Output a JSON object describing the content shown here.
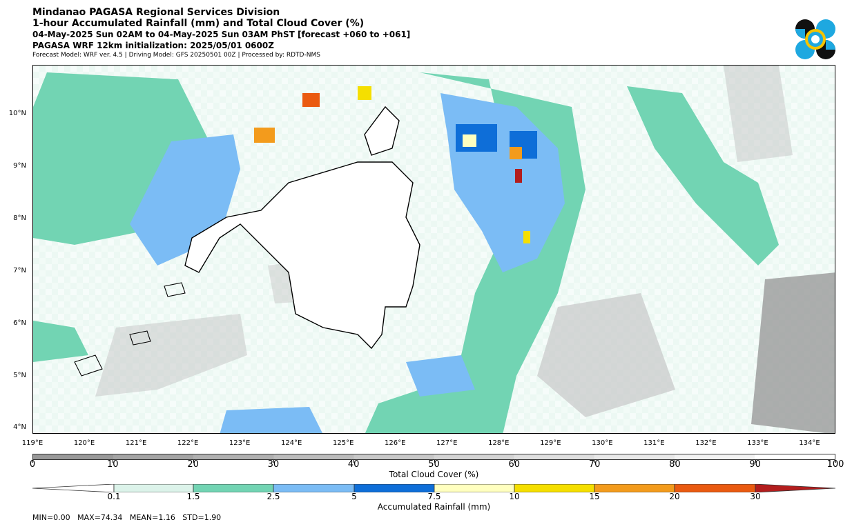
{
  "header": {
    "title": "Mindanao PAGASA Regional Services Division",
    "subtitle": "1-hour Accumulated Rainfall (mm) and Total Cloud Cover (%)",
    "valid_time": "04-May-2025 Sun 02AM to 04-May-2025 Sun 03AM PhST [forecast +060 to +061]",
    "model_init": "PAGASA WRF 12km initialization: 2025/05/01 0600Z",
    "credits": "Forecast Model: WRF ver. 4.5 | Driving Model: GFS 20250501 00Z | Processed by: RDTD-NMS"
  },
  "logo": {
    "icon": "pagasa-logo-icon",
    "colors": [
      "#111111",
      "#1ea8e0",
      "#f5c400",
      "#ffffff"
    ]
  },
  "map": {
    "lat_labels": [
      "10°N",
      "9°N",
      "8°N",
      "7°N",
      "6°N",
      "5°N",
      "4°N"
    ],
    "lon_labels": [
      "119°E",
      "120°E",
      "121°E",
      "122°E",
      "123°E",
      "124°E",
      "125°E",
      "126°E",
      "127°E",
      "128°E",
      "129°E",
      "130°E",
      "131°E",
      "132°E",
      "133°E",
      "134°E"
    ],
    "extent": {
      "lon_min": 119,
      "lon_max": 134.5,
      "lat_min": 3.9,
      "lat_max": 10.95
    }
  },
  "cloud_colorbar": {
    "title": "Total Cloud Cover (%)",
    "ticks": [
      "0",
      "10",
      "20",
      "30",
      "40",
      "50",
      "60",
      "70",
      "80",
      "90",
      "100"
    ],
    "colors": [
      "#999999",
      "#a4a4a4",
      "#b0b0b0",
      "#bcbcbc",
      "#c8c8c8",
      "#d4d4d4",
      "#dfdfdf",
      "#e9e9e9",
      "#f3f3f3",
      "#ffffff"
    ]
  },
  "rain_colorbar": {
    "title": "Accumulated Rainfall (mm)",
    "tick_labels": [
      "0.1",
      "1.5",
      "2.5",
      "5",
      "7.5",
      "10",
      "15",
      "20",
      "30"
    ],
    "colors": [
      "#dcf3ea",
      "#72d4b3",
      "#7bbcf5",
      "#0e6ed8",
      "#ffffbf",
      "#f5df00",
      "#f39b1c",
      "#ea5a10",
      "#b31d1d"
    ]
  },
  "stats": {
    "text": "MIN=0.00   MAX=74.34   MEAN=1.16   STD=1.90"
  }
}
